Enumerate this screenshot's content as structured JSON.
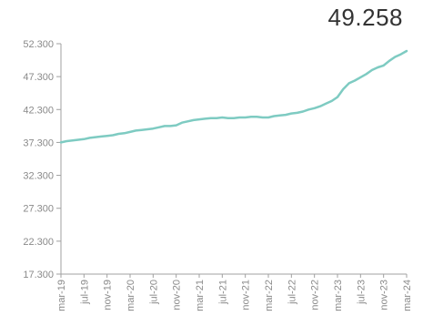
{
  "headline": {
    "value": "49.258"
  },
  "chart_data": {
    "type": "line",
    "title": "",
    "xlabel": "",
    "ylabel": "",
    "ylim": [
      17300,
      52300
    ],
    "y_ticks": [
      "17.300",
      "22.300",
      "27.300",
      "32.300",
      "37.300",
      "42.300",
      "47.300",
      "52.300"
    ],
    "y_tick_values": [
      17300,
      22300,
      27300,
      32300,
      37300,
      42300,
      47300,
      52300
    ],
    "x_ticks": [
      "mar-19",
      "jul-19",
      "nov-19",
      "mar-20",
      "jul-20",
      "nov-20",
      "mar-21",
      "jul-21",
      "nov-21",
      "mar-22",
      "jul-22",
      "nov-22",
      "mar-23",
      "jul-23",
      "nov-23",
      "mar-24"
    ],
    "grid": false,
    "legend": "none",
    "line_color": "#7ecbc2",
    "axis_color": "#a0a0a0",
    "series": [
      {
        "x": [
          "mar-19",
          "apr-19",
          "may-19",
          "jun-19",
          "jul-19",
          "aug-19",
          "sep-19",
          "oct-19",
          "nov-19",
          "dec-19",
          "jan-20",
          "feb-20",
          "mar-20",
          "apr-20",
          "may-20",
          "jun-20",
          "jul-20",
          "aug-20",
          "sep-20",
          "oct-20",
          "nov-20",
          "dec-20",
          "jan-21",
          "feb-21",
          "mar-21",
          "apr-21",
          "may-21",
          "jun-21",
          "jul-21",
          "aug-21",
          "sep-21",
          "oct-21",
          "nov-21",
          "dec-21",
          "jan-22",
          "feb-22",
          "mar-22",
          "apr-22",
          "may-22",
          "jun-22",
          "jul-22",
          "aug-22",
          "sep-22",
          "oct-22",
          "nov-22",
          "dec-22",
          "jan-23",
          "feb-23",
          "mar-23",
          "apr-23",
          "may-23",
          "jun-23",
          "jul-23",
          "aug-23",
          "sep-23",
          "oct-23",
          "nov-23",
          "dec-23",
          "jan-24",
          "feb-24",
          "mar-24"
        ],
        "values": [
          37300,
          37500,
          37600,
          37700,
          37800,
          38000,
          38100,
          38200,
          38300,
          38400,
          38600,
          38700,
          38900,
          39100,
          39200,
          39300,
          39400,
          39600,
          39800,
          39800,
          39900,
          40300,
          40500,
          40700,
          40800,
          40900,
          41000,
          41000,
          41100,
          41000,
          41000,
          41100,
          41100,
          41200,
          41200,
          41100,
          41100,
          41300,
          41400,
          41500,
          41700,
          41800,
          42000,
          42300,
          42500,
          42800,
          43200,
          43600,
          44200,
          45400,
          46300,
          46700,
          47200,
          47700,
          48300,
          48700,
          49000,
          49700,
          50300,
          50700,
          51200
        ]
      }
    ]
  }
}
